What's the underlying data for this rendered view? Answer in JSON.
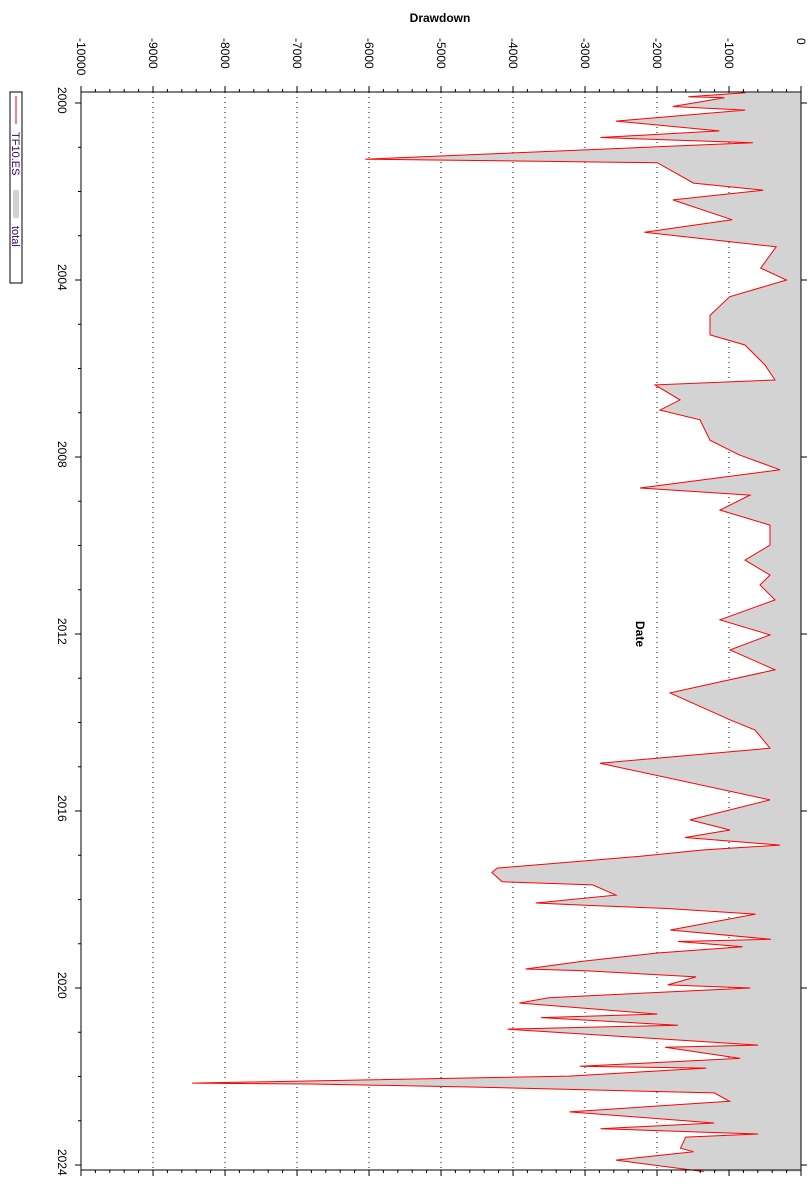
{
  "chart_data": {
    "type": "line",
    "orientation": "rotated-90-clockwise",
    "title": "",
    "xlabel": "Date",
    "ylabel": "Drawdown",
    "xlim": [
      1999.75,
      2024.15
    ],
    "ylim": [
      -10000,
      0
    ],
    "x_ticks": [
      "2000",
      "2004",
      "2008",
      "2012",
      "2016",
      "2020",
      "2024"
    ],
    "y_ticks": [
      "-10000",
      "-9000",
      "-8000",
      "-7000",
      "-6000",
      "-5000",
      "-4000",
      "-3000",
      "-2000",
      "-1000",
      "0"
    ],
    "grid": "dotted vertical lines at drawdown ticks",
    "legend": {
      "placement": "left-top",
      "entries": [
        "TF10.ES",
        "total"
      ]
    },
    "series": [
      {
        "name": "TF10.ES",
        "kind": "line",
        "color": "#ff0000",
        "x": [
          1999.77,
          1999.86,
          1999.88,
          2000.08,
          2000.16,
          2000.41,
          2000.63,
          2000.78,
          2000.9,
          2000.99,
          2001.27,
          2001.35,
          2001.81,
          2001.97,
          2002.19,
          2002.64,
          2002.92,
          2003.25,
          2003.73,
          2004.0,
          2004.38,
          2004.8,
          2005.24,
          2005.47,
          2005.92,
          2006.26,
          2006.37,
          2006.71,
          2006.94,
          2007.16,
          2007.62,
          2007.95,
          2008.29,
          2008.7,
          2008.86,
          2009.2,
          2009.54,
          2009.99,
          2010.33,
          2010.67,
          2010.89,
          2011.23,
          2011.68,
          2012.02,
          2012.36,
          2012.81,
          2013.33,
          2013.94,
          2014.17,
          2014.58,
          2014.92,
          2015.75,
          2016.2,
          2016.43,
          2016.6,
          2016.77,
          2016.88,
          2017.03,
          2017.29,
          2017.39,
          2017.6,
          2017.67,
          2017.9,
          2018.08,
          2018.13,
          2018.2,
          2018.33,
          2018.69,
          2018.9,
          2018.95,
          2019.07,
          2019.21,
          2019.39,
          2019.57,
          2019.61,
          2019.75,
          2019.93,
          2020.0,
          2020.22,
          2020.34,
          2020.59,
          2020.67,
          2020.84,
          2020.93,
          2021.29,
          2021.34,
          2021.59,
          2021.77,
          2021.81,
          2021.99,
          2022.15,
          2022.17,
          2022.24,
          2022.37,
          2022.56,
          2022.8,
          2023.05,
          2023.18,
          2023.3,
          2023.37,
          2023.62,
          2023.7,
          2023.89,
          2024.15
        ],
        "y": [
          -775,
          -1565,
          -1062,
          -1780,
          -775,
          -2570,
          -1134,
          -2785,
          -668,
          -1996,
          -6052,
          -1996,
          -1493,
          -524,
          -1780,
          -955,
          -2175,
          -345,
          -560,
          -201,
          -991,
          -1264,
          -1264,
          -778,
          -500,
          -361,
          -2028,
          -1681,
          -1958,
          -1403,
          -1264,
          -861,
          -292,
          -2236,
          -708,
          -1125,
          -431,
          -431,
          -778,
          -431,
          -569,
          -361,
          -1125,
          -431,
          -986,
          -361,
          -1819,
          -986,
          -639,
          -431,
          -2792,
          -431,
          -1542,
          -986,
          -1611,
          -292,
          -1350,
          -2283,
          -4221,
          -4293,
          -4150,
          -2893,
          -2570,
          -3683,
          -3000,
          -1888,
          -632,
          -1816,
          -416,
          -1709,
          -811,
          -1996,
          -3000,
          -3826,
          -3000,
          -1457,
          -1852,
          -703,
          -3503,
          -3912,
          -1996,
          -3611,
          -1709,
          -4078,
          -596,
          -1888,
          -847,
          -3072,
          -1314,
          -3216,
          -8457,
          -6805,
          -4508,
          -1206,
          -991,
          -3216,
          -1206,
          -2785,
          -596,
          -1601,
          -1673,
          -1493,
          -2570,
          -1350
        ]
      },
      {
        "name": "total",
        "kind": "area",
        "color": "#d3d3d3",
        "values_same_as": "TF10.ES"
      }
    ]
  }
}
